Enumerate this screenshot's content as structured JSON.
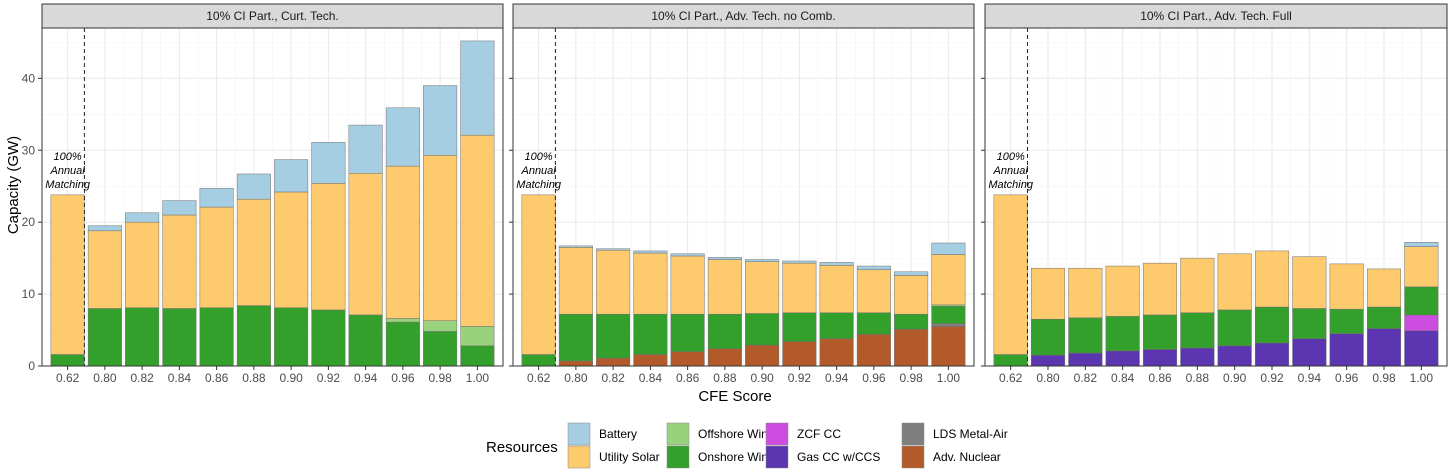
{
  "chart_data": {
    "type": "bar",
    "stacked": true,
    "xlabel": "CFE Score",
    "ylabel": "Capacity (GW)",
    "ylim": [
      0,
      47
    ],
    "y_ticks": [
      0,
      10,
      20,
      30,
      40
    ],
    "grid": true,
    "categories": [
      "0.62",
      "0.80",
      "0.82",
      "0.84",
      "0.86",
      "0.88",
      "0.90",
      "0.92",
      "0.94",
      "0.96",
      "0.98",
      "1.00"
    ],
    "annotation": [
      "100%",
      "Annual",
      "Matching"
    ],
    "legend": {
      "title": "Resources",
      "position": "bottom",
      "items": [
        {
          "name": "Battery",
          "color": "#a6cee3"
        },
        {
          "name": "Utility Solar",
          "color": "#fdcb6e"
        },
        {
          "name": "Offshore Wind",
          "color": "#98d27c"
        },
        {
          "name": "Onshore Wind",
          "color": "#33a02c"
        },
        {
          "name": "ZCF CC",
          "color": "#cc4de0"
        },
        {
          "name": "Gas CC w/CCS",
          "color": "#5c35b0"
        },
        {
          "name": "LDS Metal-Air",
          "color": "#7f7f7f"
        },
        {
          "name": "Adv. Nuclear",
          "color": "#b35a2a"
        }
      ]
    },
    "stack_order": [
      "Adv. Nuclear",
      "Gas CC w/CCS",
      "ZCF CC",
      "LDS Metal-Air",
      "Onshore Wind",
      "Offshore Wind",
      "Utility Solar",
      "Battery"
    ],
    "panels": [
      {
        "title": "10% CI Part., Curt. Tech.",
        "series": [
          {
            "name": "Adv. Nuclear",
            "values": [
              0,
              0,
              0,
              0,
              0,
              0,
              0,
              0,
              0,
              0,
              0,
              0
            ]
          },
          {
            "name": "Gas CC w/CCS",
            "values": [
              0,
              0,
              0,
              0,
              0,
              0,
              0,
              0,
              0,
              0,
              0,
              0
            ]
          },
          {
            "name": "ZCF CC",
            "values": [
              0,
              0,
              0,
              0,
              0,
              0,
              0,
              0,
              0,
              0,
              0,
              0
            ]
          },
          {
            "name": "LDS Metal-Air",
            "values": [
              0,
              0,
              0,
              0,
              0,
              0,
              0,
              0,
              0,
              0,
              0,
              0
            ]
          },
          {
            "name": "Onshore Wind",
            "values": [
              1.6,
              8.0,
              8.1,
              8.0,
              8.1,
              8.4,
              8.1,
              7.8,
              7.1,
              6.1,
              4.8,
              2.8
            ]
          },
          {
            "name": "Offshore Wind",
            "values": [
              0,
              0,
              0,
              0,
              0,
              0,
              0,
              0,
              0,
              0.5,
              1.5,
              2.7
            ]
          },
          {
            "name": "Utility Solar",
            "values": [
              22.2,
              10.8,
              11.9,
              13.0,
              14.0,
              14.8,
              16.1,
              17.6,
              19.7,
              21.2,
              23.0,
              26.6
            ]
          },
          {
            "name": "Battery",
            "values": [
              0,
              0.7,
              1.3,
              2.0,
              2.6,
              3.5,
              4.5,
              5.7,
              6.7,
              8.1,
              9.7,
              13.1
            ]
          }
        ]
      },
      {
        "title": "10% CI Part., Adv. Tech. no Comb.",
        "series": [
          {
            "name": "Adv. Nuclear",
            "values": [
              0,
              0.7,
              1.1,
              1.6,
              2.0,
              2.4,
              2.9,
              3.4,
              3.8,
              4.4,
              5.1,
              5.5
            ]
          },
          {
            "name": "Gas CC w/CCS",
            "values": [
              0,
              0,
              0,
              0,
              0,
              0,
              0,
              0,
              0,
              0,
              0,
              0
            ]
          },
          {
            "name": "ZCF CC",
            "values": [
              0,
              0,
              0,
              0,
              0,
              0,
              0,
              0,
              0,
              0,
              0,
              0
            ]
          },
          {
            "name": "LDS Metal-Air",
            "values": [
              0,
              0,
              0,
              0,
              0,
              0,
              0,
              0,
              0,
              0,
              0,
              0.4
            ]
          },
          {
            "name": "Onshore Wind",
            "values": [
              1.6,
              6.5,
              6.1,
              5.6,
              5.2,
              4.8,
              4.4,
              4.0,
              3.6,
              3.0,
              2.1,
              2.4
            ]
          },
          {
            "name": "Offshore Wind",
            "values": [
              0,
              0,
              0,
              0,
              0,
              0,
              0,
              0,
              0,
              0,
              0,
              0.2
            ]
          },
          {
            "name": "Utility Solar",
            "values": [
              22.2,
              9.3,
              8.9,
              8.5,
              8.1,
              7.6,
              7.2,
              6.9,
              6.6,
              6.0,
              5.4,
              7.0
            ]
          },
          {
            "name": "Battery",
            "values": [
              0,
              0.2,
              0.2,
              0.3,
              0.3,
              0.3,
              0.3,
              0.3,
              0.4,
              0.5,
              0.5,
              1.6
            ]
          }
        ]
      },
      {
        "title": "10% CI Part., Adv. Tech. Full",
        "series": [
          {
            "name": "Adv. Nuclear",
            "values": [
              0,
              0,
              0,
              0,
              0,
              0,
              0,
              0,
              0,
              0,
              0,
              0
            ]
          },
          {
            "name": "Gas CC w/CCS",
            "values": [
              0,
              1.5,
              1.8,
              2.1,
              2.3,
              2.5,
              2.8,
              3.2,
              3.8,
              4.5,
              5.2,
              4.9
            ]
          },
          {
            "name": "ZCF CC",
            "values": [
              0,
              0,
              0,
              0,
              0,
              0,
              0,
              0,
              0,
              0,
              0,
              2.2
            ]
          },
          {
            "name": "LDS Metal-Air",
            "values": [
              0,
              0,
              0,
              0,
              0,
              0,
              0,
              0,
              0,
              0,
              0,
              0
            ]
          },
          {
            "name": "Onshore Wind",
            "values": [
              1.6,
              5.0,
              4.9,
              4.8,
              4.8,
              4.9,
              5.0,
              5.0,
              4.2,
              3.4,
              3.0,
              3.9
            ]
          },
          {
            "name": "Offshore Wind",
            "values": [
              0,
              0,
              0,
              0,
              0,
              0,
              0,
              0,
              0,
              0,
              0,
              0
            ]
          },
          {
            "name": "Utility Solar",
            "values": [
              22.2,
              7.1,
              6.9,
              7.0,
              7.2,
              7.6,
              7.8,
              7.8,
              7.2,
              6.3,
              5.3,
              5.6
            ]
          },
          {
            "name": "Battery",
            "values": [
              0,
              0,
              0,
              0,
              0,
              0,
              0,
              0,
              0,
              0,
              0,
              0.6
            ]
          }
        ]
      }
    ]
  }
}
